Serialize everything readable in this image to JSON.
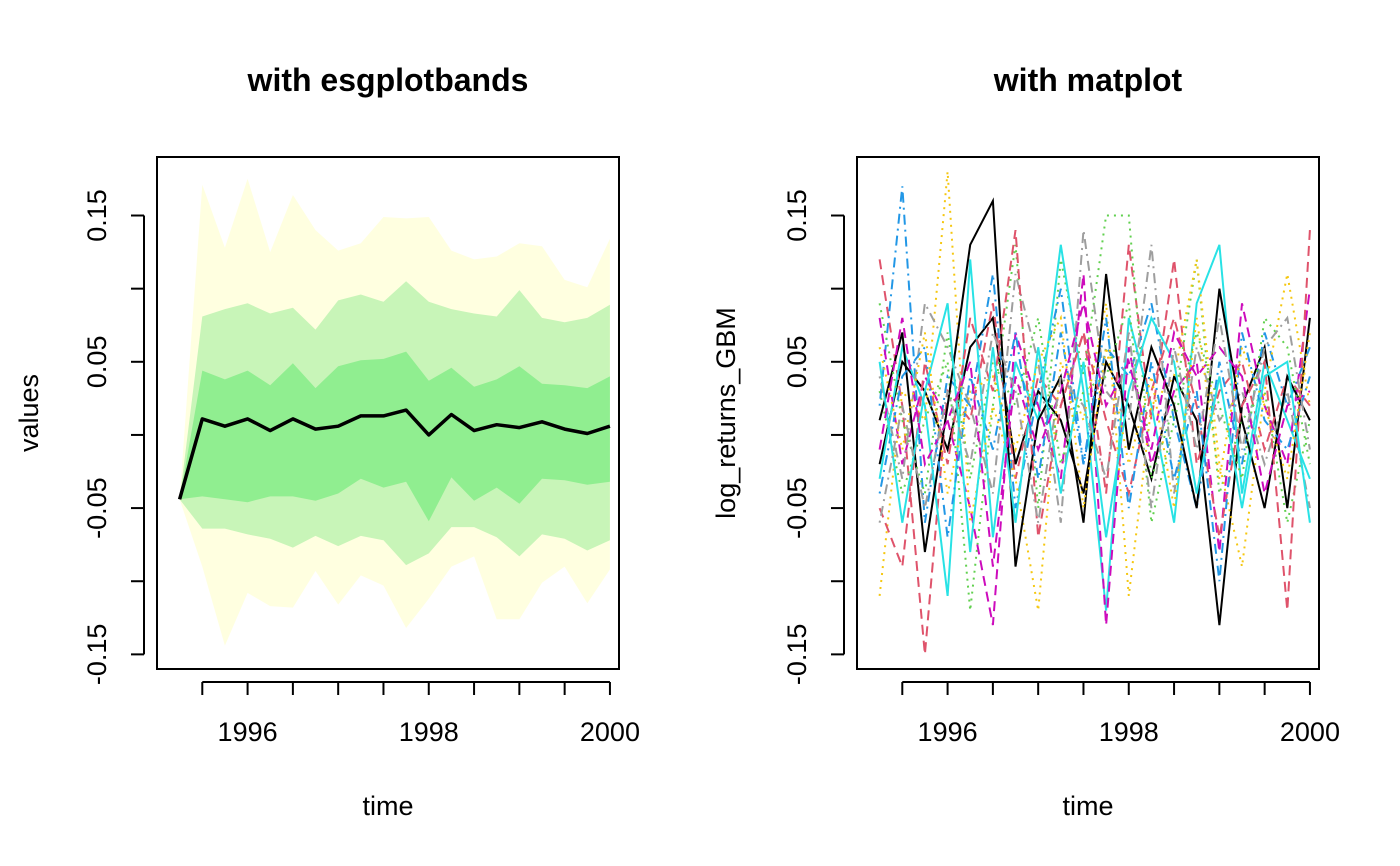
{
  "chart_data": [
    {
      "type": "area",
      "title": "with esgplotbands",
      "xlabel": "time",
      "ylabel": "values",
      "xlim": [
        1995.0,
        2000.1
      ],
      "ylim": [
        -0.16,
        0.19
      ],
      "x_ticks": [
        1996,
        1998,
        2000
      ],
      "y_ticks": [
        -0.15,
        -0.05,
        0.05,
        0.15
      ],
      "y_tick_labels": [
        "-0.15",
        "-0.05",
        "0.05",
        "0.15"
      ],
      "colors": {
        "outer_band": "#ffffe0",
        "middle_band": "#c8f5b8",
        "inner_band": "#90ee90",
        "median": "#000000"
      },
      "x": [
        1995.25,
        1995.5,
        1995.75,
        1996.0,
        1996.25,
        1996.5,
        1996.75,
        1997.0,
        1997.25,
        1997.5,
        1997.75,
        1998.0,
        1998.25,
        1998.5,
        1998.75,
        1999.0,
        1999.25,
        1999.5,
        1999.75,
        2000.0
      ],
      "bands": [
        {
          "name": "outer",
          "upper": [
            -0.044,
            0.171,
            0.128,
            0.175,
            0.125,
            0.164,
            0.14,
            0.126,
            0.131,
            0.149,
            0.148,
            0.149,
            0.126,
            0.12,
            0.122,
            0.131,
            0.129,
            0.106,
            0.101,
            0.134
          ],
          "lower": [
            -0.044,
            -0.09,
            -0.144,
            -0.108,
            -0.117,
            -0.118,
            -0.093,
            -0.116,
            -0.096,
            -0.103,
            -0.132,
            -0.112,
            -0.09,
            -0.083,
            -0.126,
            -0.126,
            -0.101,
            -0.09,
            -0.115,
            -0.092
          ]
        },
        {
          "name": "middle",
          "upper": [
            -0.044,
            0.081,
            0.086,
            0.09,
            0.083,
            0.087,
            0.072,
            0.092,
            0.096,
            0.091,
            0.105,
            0.091,
            0.086,
            0.083,
            0.081,
            0.099,
            0.08,
            0.077,
            0.08,
            0.089
          ],
          "lower": [
            -0.044,
            -0.064,
            -0.064,
            -0.068,
            -0.071,
            -0.077,
            -0.069,
            -0.076,
            -0.069,
            -0.072,
            -0.089,
            -0.081,
            -0.063,
            -0.063,
            -0.07,
            -0.083,
            -0.068,
            -0.071,
            -0.079,
            -0.072
          ]
        },
        {
          "name": "inner",
          "upper": [
            -0.044,
            0.044,
            0.038,
            0.044,
            0.034,
            0.049,
            0.032,
            0.047,
            0.051,
            0.052,
            0.057,
            0.037,
            0.046,
            0.033,
            0.038,
            0.047,
            0.035,
            0.034,
            0.032,
            0.04
          ],
          "lower": [
            -0.044,
            -0.042,
            -0.044,
            -0.046,
            -0.042,
            -0.042,
            -0.045,
            -0.04,
            -0.03,
            -0.036,
            -0.032,
            -0.059,
            -0.029,
            -0.045,
            -0.036,
            -0.047,
            -0.03,
            -0.031,
            -0.034,
            -0.032
          ]
        }
      ],
      "series": [
        {
          "values": [
            -0.044,
            0.011,
            0.006,
            0.011,
            0.003,
            0.011,
            0.004,
            0.006,
            0.013,
            0.013,
            0.017,
            0.0,
            0.014,
            0.003,
            0.007,
            0.005,
            0.009,
            0.004,
            0.001,
            0.006
          ]
        }
      ]
    },
    {
      "type": "line",
      "title": "with matplot",
      "xlabel": "time",
      "ylabel": "log_returns_GBM",
      "xlim": [
        1995.0,
        2000.1
      ],
      "ylim": [
        -0.16,
        0.19
      ],
      "x_ticks": [
        1996,
        1998,
        2000
      ],
      "y_ticks": [
        -0.15,
        -0.05,
        0.05,
        0.15
      ],
      "y_tick_labels": [
        "-0.15",
        "-0.05",
        "0.05",
        "0.15"
      ],
      "x": [
        1995.25,
        1995.5,
        1995.75,
        1996.0,
        1996.25,
        1996.5,
        1996.75,
        1997.0,
        1997.25,
        1997.5,
        1997.75,
        1998.0,
        1998.25,
        1998.5,
        1998.75,
        1999.0,
        1999.25,
        1999.5,
        1999.75,
        2000.0
      ],
      "palette": [
        "#000000",
        "#DF536B",
        "#61D04F",
        "#2297E6",
        "#28E2E5",
        "#CD0BBC",
        "#F5C710",
        "#9E9E9E"
      ],
      "line_styles": [
        "solid",
        "dashed",
        "dotted",
        "dotdash"
      ],
      "series": [
        {
          "values": [
            -0.02,
            0.05,
            0.03,
            -0.01,
            0.06,
            0.08,
            -0.02,
            0.03,
            0.01,
            -0.04,
            0.05,
            0.02,
            -0.03,
            0.04,
            0.01,
            -0.13,
            0.02,
            0.06,
            -0.05,
            0.08
          ]
        },
        {
          "values": [
            0.12,
            0.02,
            -0.15,
            0.03,
            0.01,
            0.09,
            -0.03,
            0.04,
            0.02,
            0.07,
            -0.04,
            0.13,
            0.01,
            0.12,
            -0.02,
            0.03,
            0.05,
            -0.01,
            0.04,
            0.02
          ]
        },
        {
          "values": [
            0.03,
            -0.04,
            0.01,
            0.05,
            -0.12,
            0.02,
            0.13,
            -0.05,
            0.12,
            0.04,
            0.15,
            0.15,
            -0.03,
            0.02,
            0.12,
            -0.04,
            0.01,
            0.03,
            -0.06,
            0.01
          ]
        },
        {
          "values": [
            0.02,
            0.17,
            -0.06,
            0.04,
            0.02,
            0.11,
            -0.05,
            0.03,
            0.1,
            -0.02,
            0.06,
            0.04,
            0.09,
            0.01,
            -0.05,
            0.05,
            -0.02,
            0.07,
            0.02,
            0.06
          ]
        },
        {
          "values": [
            -0.03,
            0.06,
            0.02,
            -0.11,
            0.12,
            -0.07,
            0.05,
            0.01,
            0.13,
            0.03,
            -0.12,
            0.08,
            0.02,
            -0.06,
            0.09,
            0.13,
            -0.04,
            0.05,
            0.01,
            -0.03
          ]
        },
        {
          "values": [
            0.08,
            -0.02,
            0.04,
            0.01,
            -0.05,
            -0.13,
            0.07,
            0.02,
            -0.03,
            0.11,
            -0.13,
            0.06,
            -0.02,
            0.03,
            0.05,
            -0.08,
            0.09,
            0.02,
            -0.02,
            0.1
          ]
        },
        {
          "values": [
            -0.11,
            0.03,
            0.01,
            0.18,
            -0.06,
            0.02,
            -0.03,
            -0.12,
            0.05,
            0.01,
            0.09,
            -0.11,
            0.02,
            0.04,
            0.12,
            -0.02,
            -0.09,
            0.03,
            0.11,
            0.02
          ]
        },
        {
          "values": [
            0.04,
            -0.03,
            0.09,
            0.06,
            0.02,
            -0.04,
            0.11,
            0.05,
            -0.06,
            0.14,
            0.03,
            0.01,
            0.13,
            -0.04,
            0.06,
            0.01,
            0.03,
            -0.02,
            0.03,
            -0.05
          ]
        },
        {
          "values": [
            0.01,
            0.07,
            -0.08,
            0.02,
            0.13,
            0.16,
            -0.09,
            0.01,
            0.04,
            -0.06,
            0.11,
            -0.01,
            0.06,
            0.02,
            -0.05,
            0.1,
            0.01,
            -0.05,
            0.04,
            0.01
          ]
        },
        {
          "values": [
            -0.05,
            -0.09,
            0.05,
            -0.02,
            0.08,
            0.03,
            0.14,
            -0.07,
            0.02,
            0.07,
            0.01,
            -0.04,
            0.03,
            0.08,
            0.02,
            -0.07,
            0.02,
            0.05,
            -0.12,
            0.14
          ]
        },
        {
          "values": [
            0.09,
            0.01,
            -0.04,
            0.07,
            -0.03,
            0.05,
            0.02,
            0.08,
            -0.02,
            0.03,
            0.04,
            0.09,
            -0.06,
            0.01,
            0.07,
            0.02,
            -0.03,
            0.08,
            0.06,
            -0.02
          ]
        },
        {
          "values": [
            -0.04,
            0.04,
            0.06,
            -0.07,
            0.04,
            -0.01,
            0.07,
            -0.03,
            0.07,
            -0.02,
            0.08,
            -0.05,
            0.05,
            -0.03,
            0.03,
            -0.1,
            0.07,
            0.01,
            -0.01,
            0.04
          ]
        },
        {
          "values": [
            0.05,
            -0.06,
            0.03,
            0.09,
            -0.08,
            0.06,
            -0.06,
            0.06,
            -0.04,
            0.05,
            -0.07,
            0.03,
            0.08,
            0.05,
            -0.04,
            0.04,
            -0.05,
            0.04,
            0.05,
            -0.06
          ]
        },
        {
          "values": [
            -0.01,
            0.08,
            -0.02,
            0.01,
            0.05,
            -0.09,
            0.04,
            -0.01,
            0.03,
            0.09,
            0.02,
            0.05,
            -0.01,
            0.07,
            0.04,
            0.06,
            0.04,
            -0.04,
            0.02,
            0.03
          ]
        },
        {
          "values": [
            0.06,
            -0.01,
            0.07,
            -0.04,
            0.03,
            0.04,
            -0.01,
            0.05,
            0.08,
            -0.05,
            0.06,
            -0.02,
            0.04,
            -0.05,
            0.08,
            -0.03,
            0.06,
            0.02,
            -0.03,
            0.07
          ]
        },
        {
          "values": [
            -0.06,
            0.02,
            -0.05,
            0.03,
            -0.02,
            0.07,
            0.03,
            -0.06,
            0.04,
            0.02,
            -0.03,
            0.07,
            -0.05,
            0.06,
            -0.01,
            0.08,
            -0.01,
            0.06,
            0.08,
            -0.01
          ]
        }
      ]
    }
  ]
}
